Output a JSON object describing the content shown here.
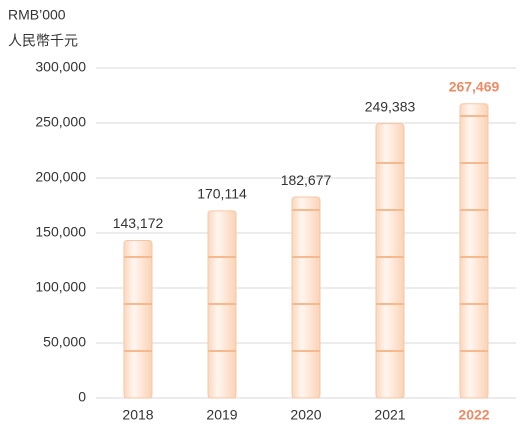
{
  "chart_data": {
    "type": "bar",
    "unit_labels": [
      "RMB’000",
      "人民幣千元"
    ],
    "categories": [
      "2018",
      "2019",
      "2020",
      "2021",
      "2022"
    ],
    "values": [
      143172,
      170114,
      182677,
      249383,
      267469
    ],
    "value_labels": [
      "143,172",
      "170,114",
      "182,677",
      "249,383",
      "267,469"
    ],
    "color": "#fde5d3",
    "edge_color": "#f6c7a6",
    "highlight_index": 4,
    "highlight_color": "#ee8a63",
    "ylim": [
      0,
      300000
    ],
    "yticks": [
      0,
      {
        "value": 50000,
        "label": "50,000"
      },
      {
        "value": 100000,
        "label": "100,000"
      },
      {
        "value": 150000,
        "label": "150,000"
      },
      {
        "value": 200000,
        "label": "200,000"
      },
      {
        "value": 250000,
        "label": "250,000"
      },
      {
        "value": 300000,
        "label": "300,000"
      }
    ],
    "grid": true
  }
}
